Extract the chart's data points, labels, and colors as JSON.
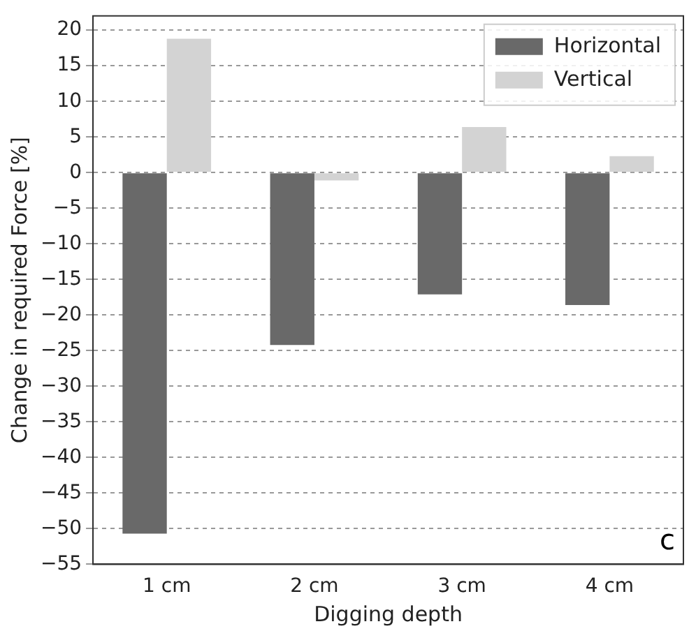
{
  "chart_data": {
    "type": "bar",
    "xlabel": "Digging depth",
    "ylabel": "Change in required Force [%]",
    "categories": [
      "1 cm",
      "2 cm",
      "3 cm",
      "4 cm"
    ],
    "series": [
      {
        "name": "Horizontal",
        "color": "#696969",
        "values": [
          -50.7,
          -24.2,
          -17.1,
          -18.6
        ]
      },
      {
        "name": "Vertical",
        "color": "#d3d3d3",
        "values": [
          18.8,
          -1.1,
          6.4,
          2.3
        ]
      }
    ],
    "ylim": [
      -55,
      22
    ],
    "yticks": [
      -55,
      -50,
      -45,
      -40,
      -35,
      -30,
      -25,
      -20,
      -15,
      -10,
      -5,
      0,
      5,
      10,
      15,
      20
    ],
    "grid": "y",
    "legend": "top right",
    "annotations": [
      "c"
    ]
  }
}
